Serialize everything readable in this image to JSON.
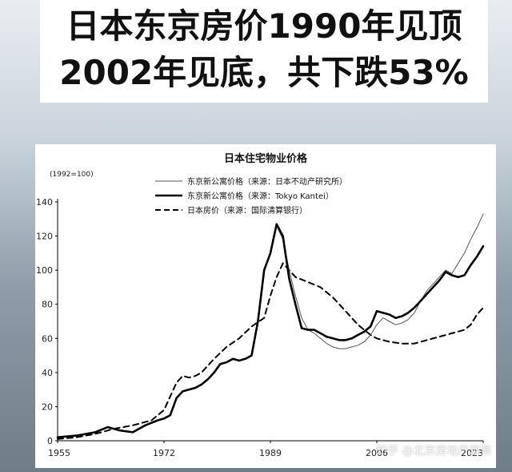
{
  "headline": {
    "line1": "日本东京房价1990年见顶",
    "line2": "2002年见底，共下跌53%"
  },
  "watermark": "知乎 @北京房地产观察",
  "chart_data": {
    "type": "line",
    "title": "日本住宅物业价格",
    "ylabel": "(1992=100)",
    "xlabel": "",
    "xlim": [
      1955,
      2023
    ],
    "ylim": [
      0,
      140
    ],
    "x_ticks": [
      1955,
      1972,
      1989,
      2006,
      2023
    ],
    "y_ticks": [
      0,
      20,
      40,
      60,
      80,
      100,
      120,
      140
    ],
    "grid": false,
    "legend_position": "top",
    "series": [
      {
        "name": "东京新公寓价格（来源：日本不动产研究所）",
        "style": "thin",
        "color": "#555555",
        "x": [
          1990,
          1991,
          1992,
          1993,
          1994,
          1995,
          1996,
          1997,
          1998,
          1999,
          2000,
          2001,
          2002,
          2003,
          2004,
          2005,
          2006,
          2007,
          2008,
          2009,
          2010,
          2011,
          2012,
          2013,
          2014,
          2015,
          2016,
          2017,
          2018,
          2019,
          2020,
          2021,
          2022,
          2023
        ],
        "values": [
          126,
          118,
          100,
          85,
          72,
          65,
          63,
          60,
          57,
          55,
          54,
          54,
          55,
          56,
          58,
          62,
          68,
          72,
          70,
          68,
          69,
          71,
          75,
          82,
          88,
          92,
          96,
          100,
          98,
          104,
          110,
          118,
          125,
          133
        ]
      },
      {
        "name": "东京新公寓价格（来源：Tokyo Kantei）",
        "style": "thick",
        "color": "#000000",
        "x": [
          1955,
          1958,
          1961,
          1963,
          1965,
          1967,
          1969,
          1971,
          1972,
          1973,
          1974,
          1975,
          1976,
          1977,
          1978,
          1979,
          1980,
          1981,
          1982,
          1983,
          1984,
          1985,
          1986,
          1987,
          1988,
          1989,
          1990,
          1991,
          1992,
          1993,
          1994,
          1995,
          1996,
          1997,
          1998,
          1999,
          2000,
          2001,
          2002,
          2003,
          2004,
          2005,
          2006,
          2007,
          2008,
          2009,
          2010,
          2011,
          2012,
          2013,
          2014,
          2015,
          2016,
          2017,
          2018,
          2019,
          2020,
          2021,
          2022,
          2023
        ],
        "values": [
          2,
          3,
          5,
          8,
          6,
          5,
          9,
          12,
          13,
          15,
          25,
          29,
          30,
          31,
          33,
          36,
          40,
          45,
          46,
          48,
          47,
          48,
          50,
          70,
          100,
          110,
          127,
          120,
          95,
          80,
          66,
          65,
          65,
          63,
          61,
          60,
          59,
          59,
          60,
          62,
          64,
          67,
          76,
          75,
          74,
          72,
          73,
          75,
          78,
          82,
          86,
          90,
          94,
          99,
          97,
          96,
          97,
          103,
          108,
          114
        ]
      },
      {
        "name": "日本房价（来源：国际清算银行）",
        "style": "dashed",
        "color": "#000000",
        "x": [
          1955,
          1958,
          1961,
          1964,
          1967,
          1970,
          1972,
          1973,
          1974,
          1975,
          1976,
          1977,
          1978,
          1980,
          1982,
          1984,
          1986,
          1988,
          1989,
          1990,
          1991,
          1992,
          1993,
          1995,
          1997,
          1999,
          2001,
          2003,
          2005,
          2006,
          2008,
          2010,
          2012,
          2014,
          2016,
          2018,
          2020,
          2021,
          2022,
          2023
        ],
        "values": [
          1,
          2,
          4,
          7,
          9,
          12,
          18,
          26,
          34,
          38,
          37,
          38,
          40,
          48,
          55,
          60,
          67,
          72,
          85,
          96,
          104,
          100,
          96,
          93,
          90,
          84,
          76,
          68,
          62,
          60,
          58,
          57,
          57,
          59,
          61,
          63,
          65,
          68,
          74,
          78
        ]
      }
    ]
  }
}
